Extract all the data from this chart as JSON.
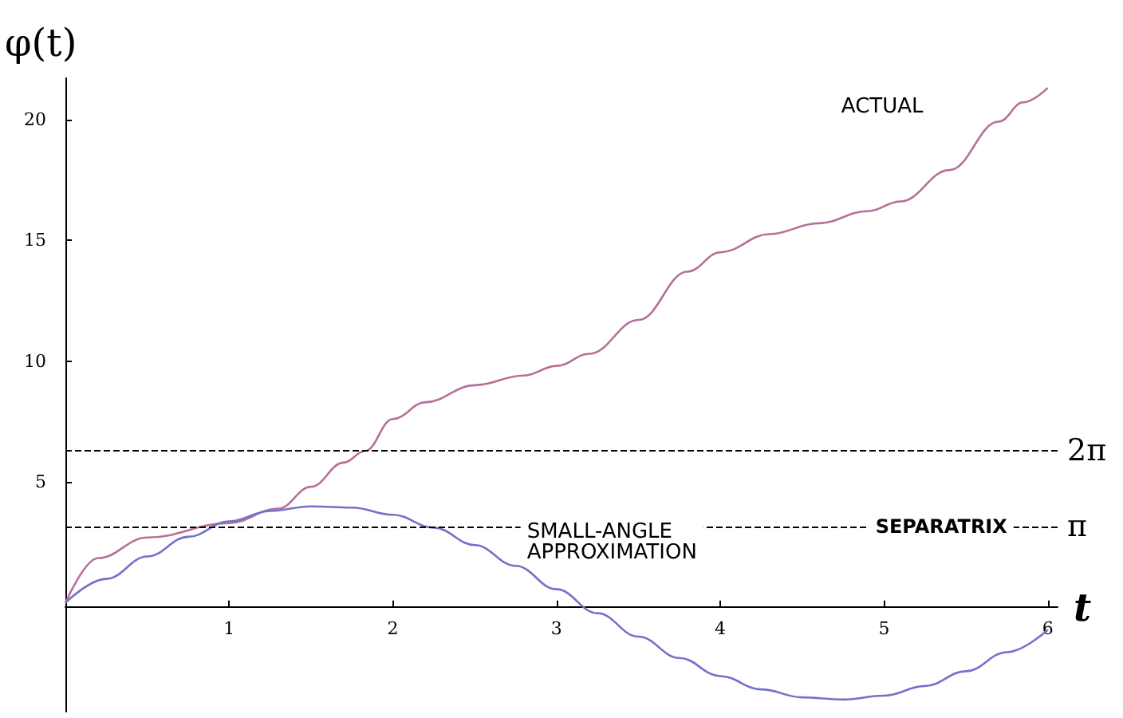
{
  "chart_data": {
    "type": "line",
    "xlabel": "t",
    "ylabel": "φ(t)",
    "xlim": [
      0,
      6.06
    ],
    "ylim": [
      -4.5,
      21.7
    ],
    "xticks": [
      1,
      2,
      3,
      4,
      5,
      6
    ],
    "yticks": [
      5,
      10,
      15,
      20
    ],
    "grid": false,
    "legend": false,
    "marker": "none",
    "line_style": "solid",
    "series": [
      {
        "name": "ACTUAL",
        "color": "#b76f98",
        "x": [
          0,
          0.2,
          0.5,
          1,
          1.3,
          1.5,
          1.7,
          1.83,
          2,
          2.2,
          2.5,
          2.8,
          3,
          3.2,
          3.5,
          3.8,
          4,
          4.3,
          4.6,
          4.9,
          5.1,
          5.4,
          5.7,
          5.85,
          6
        ],
        "values": [
          0,
          1.85,
          2.7,
          3.3,
          3.9,
          4.8,
          5.8,
          6.28,
          7.6,
          8.3,
          9,
          9.4,
          9.8,
          10.3,
          11.7,
          13.7,
          14.5,
          15.25,
          15.7,
          16.2,
          16.6,
          17.9,
          19.9,
          20.7,
          21.3
        ]
      },
      {
        "name": "SMALL-ANGLE APPROXIMATION",
        "color": "#7272c8",
        "x": [
          0,
          0.25,
          0.5,
          0.75,
          1,
          1.25,
          1.5,
          1.75,
          2,
          2.25,
          2.5,
          2.75,
          3,
          3.25,
          3.5,
          3.75,
          4,
          4.25,
          4.5,
          4.75,
          5,
          5.25,
          5.5,
          5.75,
          6
        ],
        "values": [
          0,
          0.99,
          1.92,
          2.73,
          3.37,
          3.8,
          3.99,
          3.94,
          3.64,
          3.11,
          2.39,
          1.53,
          0.56,
          -0.43,
          -1.4,
          -2.28,
          -3.03,
          -3.58,
          -3.91,
          -4,
          -3.84,
          -3.44,
          -2.83,
          -2.04,
          -1.12
        ]
      }
    ],
    "ref_lines": [
      {
        "axis": "y",
        "value": 6.283,
        "label": "2π",
        "line_style": "dashed",
        "color": "#000000"
      },
      {
        "axis": "y",
        "value": 3.1416,
        "label": "π",
        "line_style": "dashed",
        "color": "#000000"
      }
    ],
    "annotations": [
      {
        "text": "SEPARATRIX",
        "x": 5.35,
        "y": 3.1416
      }
    ]
  }
}
